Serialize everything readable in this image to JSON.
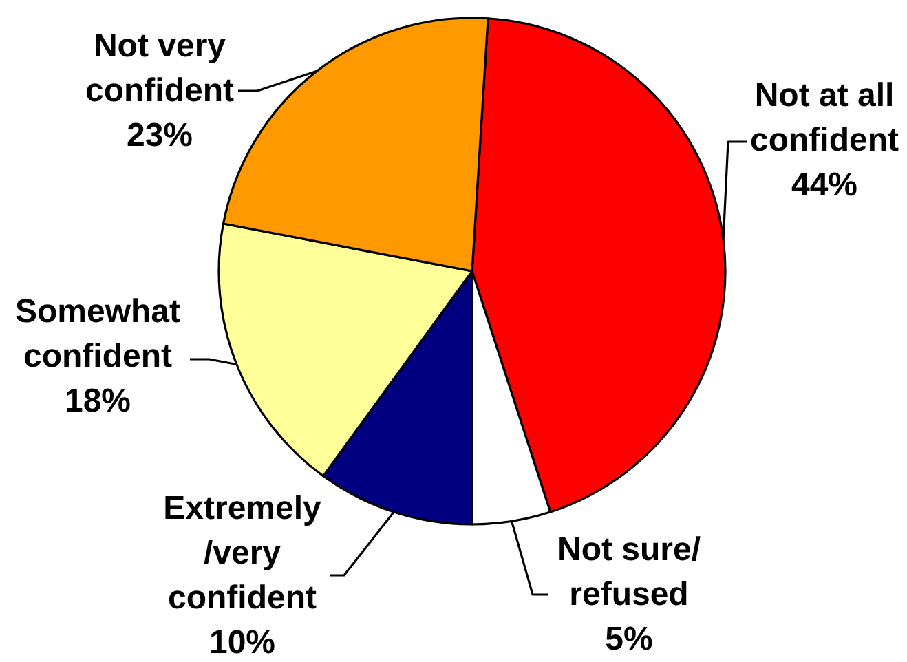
{
  "chart_data": {
    "type": "pie",
    "categories": [
      "Not at all confident",
      "Not sure/ refused",
      "Extremely /very confident",
      "Somewhat confident",
      "Not very confident"
    ],
    "values": [
      44,
      5,
      10,
      18,
      23
    ],
    "colors": [
      "#ff0000",
      "#ffffff",
      "#000080",
      "#ffff99",
      "#ff9900"
    ],
    "value_labels": [
      "44%",
      "5%",
      "10%",
      "18%",
      "23%"
    ]
  }
}
